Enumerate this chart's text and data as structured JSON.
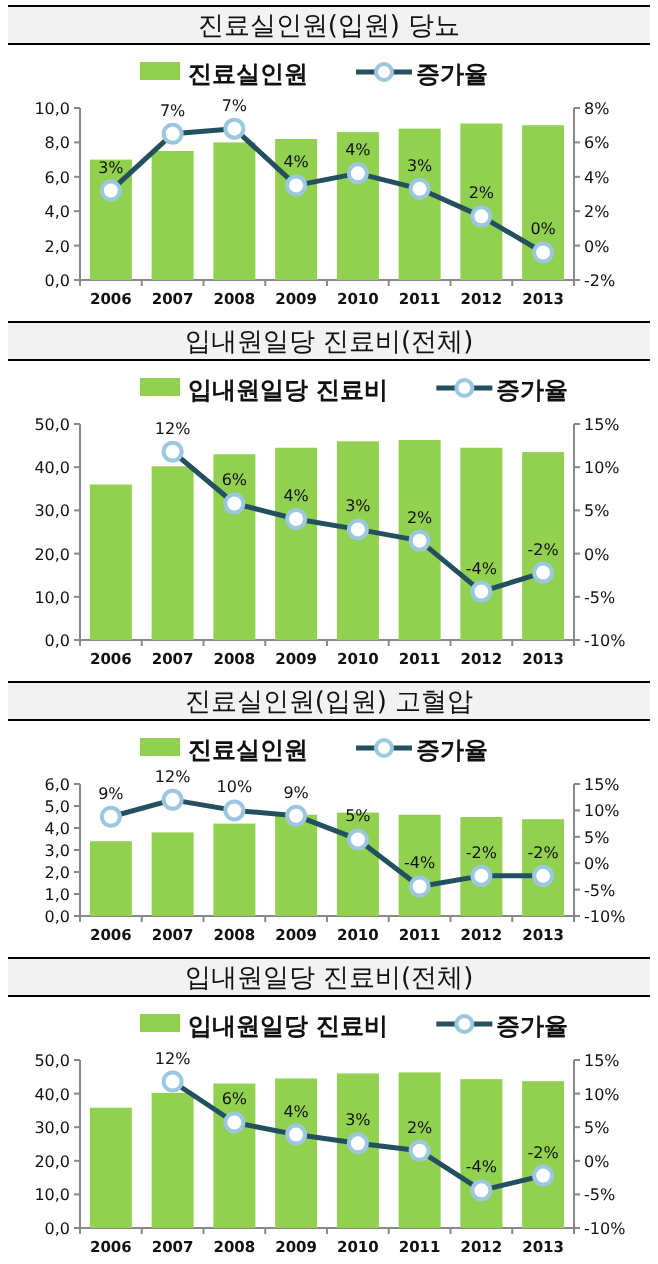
{
  "chart_data": [
    {
      "type": "bar",
      "title": "진료실인원(입원) 당뇨",
      "categories": [
        "2006",
        "2007",
        "2008",
        "2009",
        "2010",
        "2011",
        "2012",
        "2013"
      ],
      "legend": "top",
      "marker": "circle",
      "ylim": [
        0,
        10
      ],
      "yticks": [
        {
          "value": 0,
          "label": "0,0"
        },
        {
          "value": 2,
          "label": "2,0"
        },
        {
          "value": 4,
          "label": "4,0"
        },
        {
          "value": 6,
          "label": "6,0"
        },
        {
          "value": 8,
          "label": "8,0"
        },
        {
          "value": 10,
          "label": "10,0"
        }
      ],
      "y2lim": [
        -2,
        8
      ],
      "y2ticks": [
        {
          "value": -2,
          "label": "-2%"
        },
        {
          "value": 0,
          "label": "0%"
        },
        {
          "value": 2,
          "label": "2%"
        },
        {
          "value": 4,
          "label": "4%"
        },
        {
          "value": 6,
          "label": "6%"
        },
        {
          "value": 8,
          "label": "8%"
        }
      ],
      "series": [
        {
          "name": "진료실인원",
          "type": "bar",
          "color": "#92d050",
          "values": [
            7.0,
            7.5,
            8.0,
            8.2,
            8.6,
            8.8,
            9.1,
            9.0
          ]
        },
        {
          "name": "증가율",
          "type": "line",
          "axis": "y2",
          "color": "#23505e",
          "values": [
            3.2,
            6.5,
            6.8,
            3.5,
            4.2,
            3.3,
            1.7,
            -0.4
          ],
          "value_labels": [
            "3%",
            "7%",
            "7%",
            "4%",
            "4%",
            "3%",
            "2%",
            "0%"
          ]
        }
      ]
    },
    {
      "type": "bar",
      "title": "입내원일당 진료비(전체)",
      "categories": [
        "2006",
        "2007",
        "2008",
        "2009",
        "2010",
        "2011",
        "2012",
        "2013"
      ],
      "legend": "top",
      "marker": "circle",
      "ylim": [
        0,
        50
      ],
      "yticks": [
        {
          "value": 0,
          "label": "0,0"
        },
        {
          "value": 10,
          "label": "10,0"
        },
        {
          "value": 20,
          "label": "20,0"
        },
        {
          "value": 30,
          "label": "30,0"
        },
        {
          "value": 40,
          "label": "40,0"
        },
        {
          "value": 50,
          "label": "50,0"
        }
      ],
      "y2lim": [
        -10,
        15
      ],
      "y2ticks": [
        {
          "value": -10,
          "label": "-10%"
        },
        {
          "value": -5,
          "label": "-5%"
        },
        {
          "value": 0,
          "label": "0%"
        },
        {
          "value": 5,
          "label": "5%"
        },
        {
          "value": 10,
          "label": "10%"
        },
        {
          "value": 15,
          "label": "15%"
        }
      ],
      "series": [
        {
          "name": "입내원일당 진료비",
          "type": "bar",
          "color": "#92d050",
          "values": [
            36,
            40.2,
            43,
            44.5,
            46,
            46.3,
            44.5,
            43.5
          ]
        },
        {
          "name": "증가율",
          "type": "line",
          "axis": "y2",
          "color": "#23505e",
          "values": [
            null,
            11.8,
            5.8,
            4.0,
            2.8,
            1.5,
            -4.4,
            -2.2
          ],
          "value_labels": [
            null,
            "12%",
            "6%",
            "4%",
            "3%",
            "2%",
            "-4%",
            "-2%"
          ]
        }
      ]
    },
    {
      "type": "bar",
      "title": "진료실인원(입원) 고혈압",
      "categories": [
        "2006",
        "2007",
        "2008",
        "2009",
        "2010",
        "2011",
        "2012",
        "2013"
      ],
      "legend": "top",
      "marker": "circle",
      "ylim": [
        0,
        6
      ],
      "yticks": [
        {
          "value": 0,
          "label": "0,0"
        },
        {
          "value": 1,
          "label": "1,0"
        },
        {
          "value": 2,
          "label": "2,0"
        },
        {
          "value": 3,
          "label": "3,0"
        },
        {
          "value": 4,
          "label": "4,0"
        },
        {
          "value": 5,
          "label": "5,0"
        },
        {
          "value": 6,
          "label": "6,0"
        }
      ],
      "y2lim": [
        -10,
        15
      ],
      "y2ticks": [
        {
          "value": -10,
          "label": "-10%"
        },
        {
          "value": -5,
          "label": "-5%"
        },
        {
          "value": 0,
          "label": "0%"
        },
        {
          "value": 5,
          "label": "5%"
        },
        {
          "value": 10,
          "label": "10%"
        },
        {
          "value": 15,
          "label": "15%"
        }
      ],
      "series": [
        {
          "name": "진료실인원",
          "type": "bar",
          "color": "#92d050",
          "values": [
            3.4,
            3.8,
            4.2,
            4.6,
            4.7,
            4.6,
            4.5,
            4.4
          ]
        },
        {
          "name": "증가율",
          "type": "line",
          "axis": "y2",
          "color": "#23505e",
          "values": [
            8.8,
            12.0,
            10.0,
            9.0,
            4.5,
            -4.4,
            -2.4,
            -2.4
          ],
          "value_labels": [
            "9%",
            "12%",
            "10%",
            "9%",
            "5%",
            "-4%",
            "-2%",
            "-2%"
          ]
        }
      ]
    },
    {
      "type": "bar",
      "title": "입내원일당 진료비(전체)",
      "categories": [
        "2006",
        "2007",
        "2008",
        "2009",
        "2010",
        "2011",
        "2012",
        "2013"
      ],
      "legend": "top",
      "marker": "circle",
      "ylim": [
        0,
        50
      ],
      "yticks": [
        {
          "value": 0,
          "label": "0,0"
        },
        {
          "value": 10,
          "label": "10,0"
        },
        {
          "value": 20,
          "label": "20,0"
        },
        {
          "value": 30,
          "label": "30,0"
        },
        {
          "value": 40,
          "label": "40,0"
        },
        {
          "value": 50,
          "label": "50,0"
        }
      ],
      "y2lim": [
        -10,
        15
      ],
      "y2ticks": [
        {
          "value": -10,
          "label": "-10%"
        },
        {
          "value": -5,
          "label": "-5%"
        },
        {
          "value": 0,
          "label": "0%"
        },
        {
          "value": 5,
          "label": "5%"
        },
        {
          "value": 10,
          "label": "10%"
        },
        {
          "value": 15,
          "label": "15%"
        }
      ],
      "series": [
        {
          "name": "입내원일당 진료비",
          "type": "bar",
          "color": "#92d050",
          "values": [
            35.8,
            40.2,
            43,
            44.5,
            46,
            46.3,
            44.3,
            43.7
          ]
        },
        {
          "name": "증가율",
          "type": "line",
          "axis": "y2",
          "color": "#23505e",
          "values": [
            null,
            11.8,
            5.7,
            3.9,
            2.6,
            1.5,
            -4.4,
            -2.2
          ],
          "value_labels": [
            null,
            "12%",
            "6%",
            "4%",
            "3%",
            "2%",
            "-4%",
            "-2%"
          ]
        }
      ]
    }
  ]
}
